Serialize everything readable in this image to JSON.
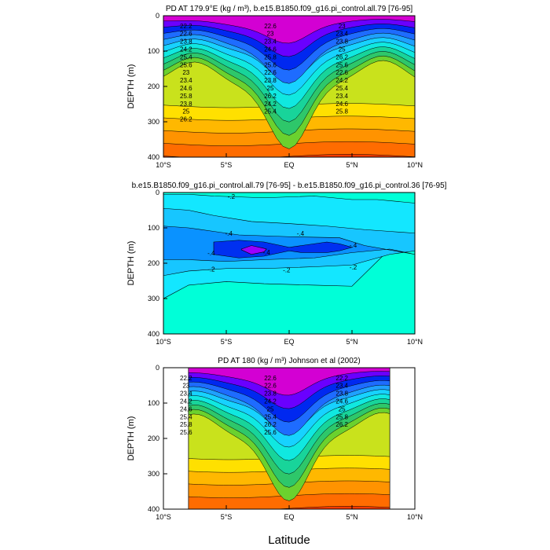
{
  "figure": {
    "xlabel": "Latitude"
  },
  "chart_data": [
    {
      "type": "contour",
      "title": "PD AT 179.9°E (kg / m³), b.e15.B1850.f09_g16.pi_control.all.79 [76-95]",
      "ylabel": "DEPTH (m)",
      "xlim": [
        -10,
        10
      ],
      "ylim": [
        400,
        0
      ],
      "x_ticks": [
        "10°S",
        "5°S",
        "EQ",
        "5°N",
        "10°N"
      ],
      "y_ticks": [
        "0",
        "100",
        "200",
        "300",
        "400"
      ],
      "contour_labels": [
        "22.2",
        "22.6",
        "23",
        "22.6",
        "23",
        "23.4",
        "23.8",
        "23.4",
        "23.8",
        "24.2",
        "24.6",
        "25",
        "25.4",
        "25.8",
        "26.2",
        "25.6",
        "25.6",
        "25.6",
        "23",
        "22.6",
        "22.6",
        "23.4",
        "23.8",
        "24.2",
        "24.6",
        "25",
        "25.4",
        "25.8",
        "26.2",
        "23.4",
        "23.8",
        "24.2",
        "24.6",
        "25",
        "25.4",
        "25.8",
        "26.2"
      ],
      "levels": [
        22.2,
        22.6,
        23.0,
        23.4,
        23.8,
        24.2,
        24.6,
        25.0,
        25.4,
        25.8,
        26.2,
        26.6
      ]
    },
    {
      "type": "contour",
      "title": "b.e15.B1850.f09_g16.pi_control.all.79 [76-95] - b.e15.B1850.f09_g16.pi_control.36 [76-95]",
      "ylabel": "DEPTH (m)",
      "xlim": [
        -10,
        10
      ],
      "ylim": [
        400,
        0
      ],
      "x_ticks": [
        "10°S",
        "5°S",
        "EQ",
        "5°N",
        "10°N"
      ],
      "y_ticks": [
        "0",
        "100",
        "200",
        "300",
        "400"
      ],
      "contour_labels": [
        "-.2",
        "-.4",
        "-.4",
        "-.4",
        "-.4",
        "-.4",
        "-.2",
        "-.2",
        "-.2"
      ]
    },
    {
      "type": "contour",
      "title": "PD AT 180 (kg / m³) Johnson et al (2002)",
      "ylabel": "DEPTH (m)",
      "xlim": [
        -10,
        10
      ],
      "ylim": [
        400,
        0
      ],
      "data_xrange": [
        -8,
        8
      ],
      "x_ticks": [
        "10°S",
        "5°S",
        "EQ",
        "5°N",
        "10°N"
      ],
      "y_ticks": [
        "0",
        "100",
        "200",
        "300",
        "400"
      ],
      "contour_labels": [
        "22.2",
        "22.6",
        "22.2",
        "23",
        "22.6",
        "23.4",
        "23.4",
        "23.8",
        "23.8",
        "24.2",
        "24.2",
        "24.6",
        "24.6",
        "25",
        "25",
        "25.4",
        "25.4",
        "25.8",
        "25.8",
        "26.2",
        "26.2",
        "25.6",
        "25.6"
      ]
    }
  ]
}
